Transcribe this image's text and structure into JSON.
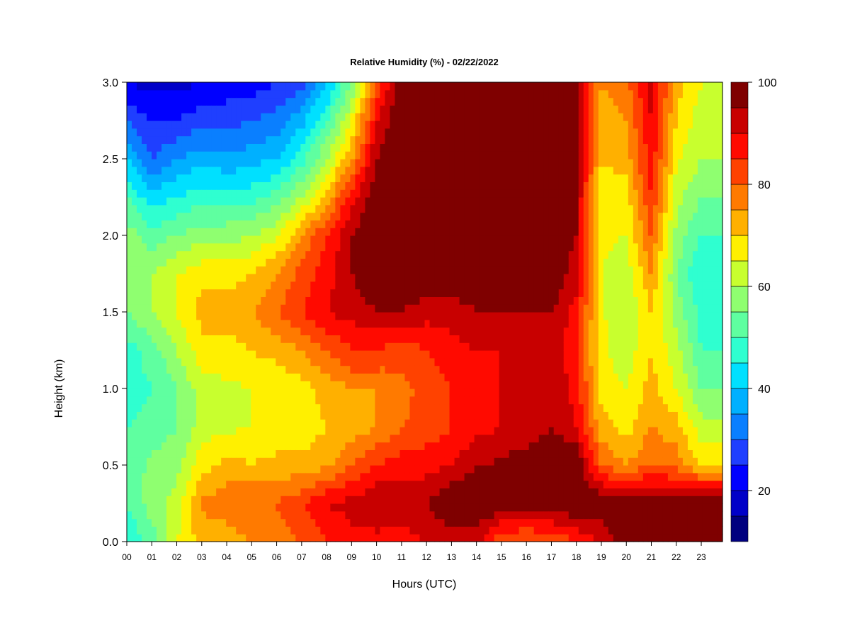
{
  "chart_data": {
    "type": "heatmap",
    "title": "Relative Humidity (%) - 02/22/2022",
    "xlabel": "Hours (UTC)",
    "ylabel": "Height (km)",
    "xlim": [
      0,
      23.85
    ],
    "ylim": [
      0,
      3.0
    ],
    "x_ticks": [
      "00",
      "01",
      "02",
      "03",
      "04",
      "05",
      "06",
      "07",
      "08",
      "09",
      "10",
      "11",
      "12",
      "13",
      "14",
      "15",
      "16",
      "17",
      "18",
      "19",
      "20",
      "21",
      "22",
      "23"
    ],
    "y_ticks": [
      "0.0",
      "0.5",
      "1.0",
      "1.5",
      "2.0",
      "2.5",
      "3.0"
    ],
    "colorbar": {
      "min": 10,
      "max": 100,
      "step": 5,
      "tick_labels": [
        "20",
        "40",
        "60",
        "80",
        "100"
      ],
      "tick_values": [
        20,
        40,
        60,
        80,
        100
      ],
      "colors": [
        "#00007f",
        "#0000c8",
        "#0000ff",
        "#1f3fff",
        "#0a7fff",
        "#00b0ff",
        "#00e0ff",
        "#2fffd0",
        "#5fffa0",
        "#8fff70",
        "#c8ff2e",
        "#fff000",
        "#ffb000",
        "#ff7a00",
        "#ff4200",
        "#ff0a00",
        "#c80000",
        "#7f0000"
      ]
    },
    "z_unit": "Relative Humidity (%)",
    "hours_sampled": [
      0,
      1,
      2,
      3,
      4,
      5,
      6,
      7,
      8,
      9,
      10,
      11,
      12,
      13,
      14,
      15,
      16,
      17,
      18,
      19,
      20,
      21,
      22,
      23
    ],
    "heights_sampled_km": [
      0.0,
      0.25,
      0.5,
      0.75,
      1.0,
      1.25,
      1.5,
      1.75,
      2.0,
      2.25,
      2.5,
      2.75,
      3.0
    ],
    "values_sampled": [
      [
        45,
        50,
        52,
        50,
        48,
        48,
        55,
        58,
        58,
        50,
        40,
        30,
        20
      ],
      [
        52,
        58,
        56,
        52,
        50,
        52,
        60,
        60,
        52,
        42,
        30,
        25,
        18
      ],
      [
        65,
        62,
        58,
        55,
        55,
        60,
        65,
        65,
        55,
        45,
        35,
        25,
        18
      ],
      [
        72,
        76,
        68,
        62,
        62,
        68,
        72,
        68,
        58,
        48,
        38,
        28,
        20
      ],
      [
        72,
        78,
        72,
        64,
        64,
        68,
        72,
        68,
        58,
        48,
        36,
        28,
        22
      ],
      [
        75,
        80,
        70,
        65,
        65,
        70,
        75,
        70,
        60,
        48,
        38,
        30,
        22
      ],
      [
        78,
        80,
        72,
        66,
        66,
        72,
        80,
        75,
        64,
        52,
        40,
        32,
        25
      ],
      [
        80,
        84,
        72,
        66,
        68,
        75,
        85,
        82,
        75,
        60,
        48,
        38,
        28
      ],
      [
        85,
        90,
        74,
        70,
        72,
        80,
        90,
        88,
        85,
        72,
        60,
        50,
        38
      ],
      [
        88,
        92,
        80,
        72,
        75,
        85,
        92,
        95,
        95,
        88,
        75,
        65,
        55
      ],
      [
        88,
        95,
        85,
        75,
        75,
        85,
        95,
        100,
        100,
        100,
        95,
        90,
        80
      ],
      [
        88,
        92,
        88,
        80,
        78,
        82,
        95,
        100,
        100,
        100,
        100,
        100,
        100
      ],
      [
        90,
        95,
        88,
        82,
        82,
        85,
        92,
        100,
        100,
        100,
        100,
        100,
        100
      ],
      [
        92,
        100,
        90,
        85,
        85,
        88,
        92,
        100,
        100,
        100,
        100,
        100,
        100
      ],
      [
        92,
        100,
        95,
        88,
        88,
        90,
        95,
        100,
        100,
        100,
        100,
        100,
        100
      ],
      [
        80,
        100,
        96,
        90,
        90,
        90,
        95,
        100,
        100,
        100,
        100,
        100,
        100
      ],
      [
        78,
        100,
        98,
        92,
        92,
        92,
        95,
        100,
        100,
        100,
        100,
        100,
        100
      ],
      [
        80,
        100,
        100,
        95,
        95,
        95,
        95,
        100,
        100,
        100,
        100,
        100,
        100
      ],
      [
        85,
        100,
        100,
        90,
        88,
        85,
        88,
        92,
        95,
        95,
        95,
        95,
        95
      ],
      [
        90,
        100,
        80,
        72,
        68,
        66,
        66,
        65,
        66,
        68,
        70,
        72,
        75
      ],
      [
        100,
        100,
        75,
        68,
        65,
        62,
        60,
        62,
        65,
        68,
        72,
        75,
        78
      ],
      [
        100,
        100,
        80,
        75,
        72,
        70,
        70,
        75,
        80,
        85,
        88,
        90,
        92
      ],
      [
        100,
        100,
        78,
        72,
        65,
        62,
        58,
        55,
        58,
        62,
        66,
        70,
        72
      ],
      [
        100,
        100,
        70,
        62,
        55,
        50,
        48,
        45,
        50,
        55,
        60,
        62,
        65
      ]
    ]
  }
}
